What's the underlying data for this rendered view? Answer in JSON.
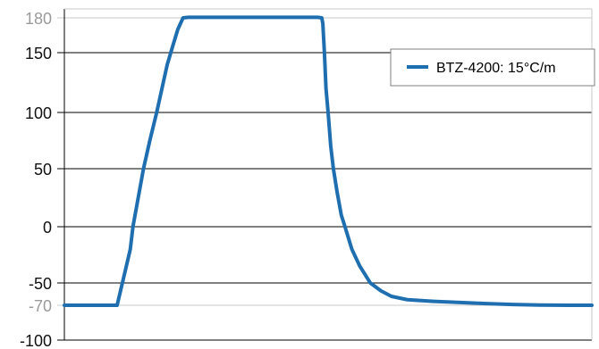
{
  "chart_data": {
    "type": "line",
    "title": "",
    "xlabel": "",
    "ylabel": "",
    "ylim": [
      -100,
      188
    ],
    "grid": true,
    "legend_position": "top-right",
    "y_ticks": [
      {
        "value": 180,
        "label": "180",
        "minor": true
      },
      {
        "value": 150,
        "label": "150",
        "minor": false
      },
      {
        "value": 100,
        "label": "100",
        "minor": false
      },
      {
        "value": 50,
        "label": "50",
        "minor": false
      },
      {
        "value": 0,
        "label": "0",
        "minor": false
      },
      {
        "value": -50,
        "label": "-50",
        "minor": false
      },
      {
        "value": -70,
        "label": "-70",
        "minor": true
      },
      {
        "value": -100,
        "label": "-100",
        "minor": false
      }
    ],
    "series": [
      {
        "name": "BTZ-4200: 15°C/m",
        "color": "#1f6fb0",
        "points": [
          [
            0,
            -70
          ],
          [
            10,
            -70
          ],
          [
            11,
            -50
          ],
          [
            12.5,
            -20
          ],
          [
            13,
            0
          ],
          [
            14,
            25
          ],
          [
            15,
            50
          ],
          [
            16.2,
            75
          ],
          [
            17.5,
            100
          ],
          [
            18.5,
            120
          ],
          [
            19.5,
            140
          ],
          [
            20.5,
            155
          ],
          [
            21.5,
            170
          ],
          [
            22.5,
            180
          ],
          [
            23.5,
            180.5
          ],
          [
            30,
            180.5
          ],
          [
            35,
            180.5
          ],
          [
            40,
            180.5
          ],
          [
            45,
            180.5
          ],
          [
            48,
            180.5
          ],
          [
            48.8,
            180
          ],
          [
            49,
            175
          ],
          [
            49.3,
            150
          ],
          [
            49.6,
            120
          ],
          [
            50,
            100
          ],
          [
            50.5,
            70
          ],
          [
            51,
            50
          ],
          [
            51.7,
            30
          ],
          [
            52.5,
            10
          ],
          [
            53.2,
            0
          ],
          [
            54.5,
            -20
          ],
          [
            56,
            -35
          ],
          [
            58,
            -50
          ],
          [
            60,
            -57
          ],
          [
            62,
            -62
          ],
          [
            65,
            -65
          ],
          [
            70,
            -66.5
          ],
          [
            75,
            -67.5
          ],
          [
            80,
            -68.5
          ],
          [
            85,
            -69.3
          ],
          [
            90,
            -69.8
          ],
          [
            97,
            -70
          ],
          [
            100,
            -70
          ]
        ]
      }
    ]
  },
  "colors": {
    "axis": "#000000",
    "major_grid": "#000000",
    "minor_grid": "#c8c8c8",
    "minor_tick_label": "#9a9a9a",
    "major_tick_label": "#111111",
    "legend_border": "#7f7f7f"
  }
}
